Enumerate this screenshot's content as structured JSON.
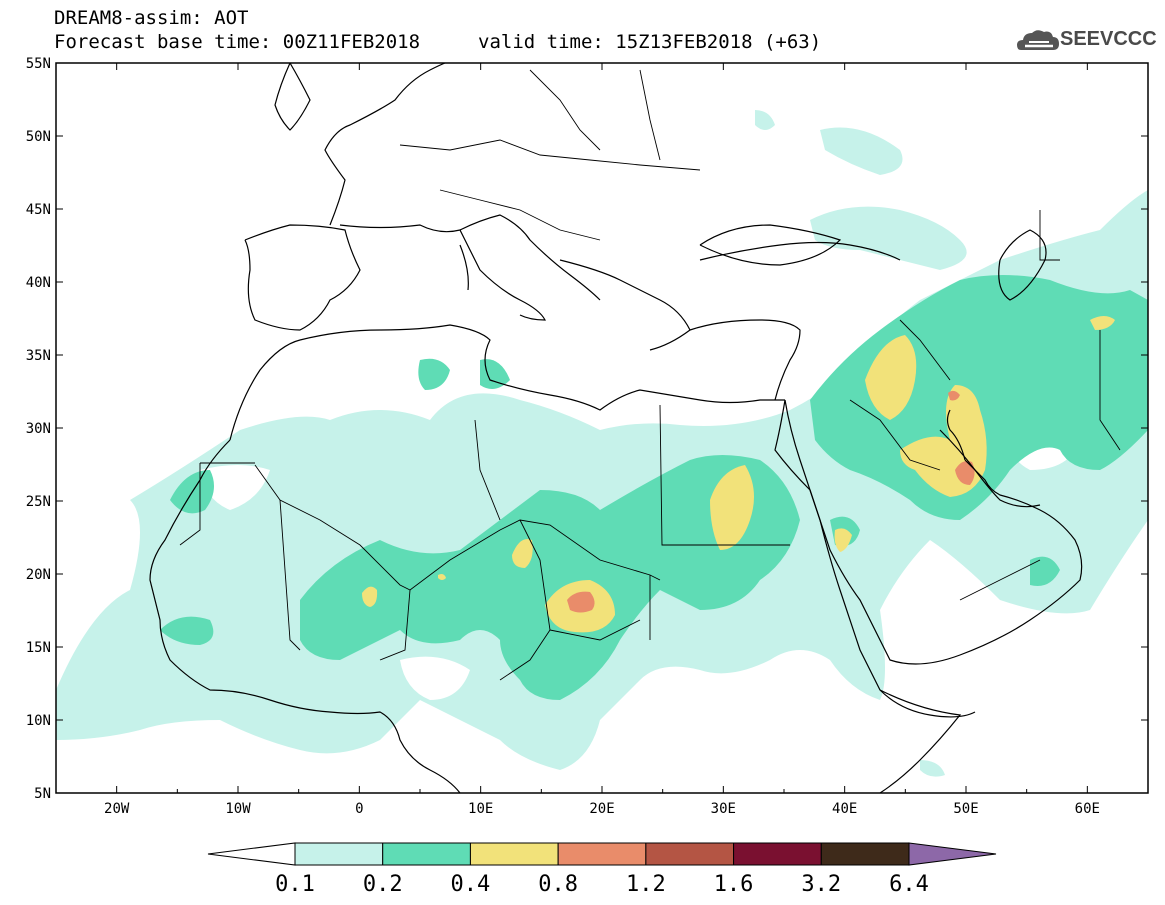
{
  "header": {
    "title": "DREAM8-assim: AOT",
    "base_time": "Forecast base time: 00Z11FEB2018",
    "valid_time": "valid time: 15Z13FEB2018 (+63)"
  },
  "logo": {
    "text": "SEEVCCC",
    "icon": "cloud-icon"
  },
  "axes": {
    "lat_labels": [
      "55N",
      "50N",
      "45N",
      "40N",
      "35N",
      "30N",
      "25N",
      "20N",
      "15N",
      "10N",
      "5N"
    ],
    "lon_labels": [
      "20W",
      "10W",
      "0",
      "10E",
      "20E",
      "30E",
      "40E",
      "50E",
      "60E"
    ]
  },
  "colorbar": {
    "labels": [
      "0.1",
      "0.2",
      "0.4",
      "0.8",
      "1.2",
      "1.6",
      "3.2",
      "6.4"
    ],
    "colors": [
      "#ffffff",
      "#c6f2ea",
      "#5fdcb5",
      "#f2e27a",
      "#e98c6a",
      "#b45544",
      "#7a1030",
      "#3e2a1a",
      "#8d68a8"
    ]
  },
  "colors": {
    "level1": "#c6f2ea",
    "level2": "#5fdcb5",
    "level3": "#f2e27a",
    "level4": "#e98c6a",
    "level5": "#c35a4a"
  }
}
